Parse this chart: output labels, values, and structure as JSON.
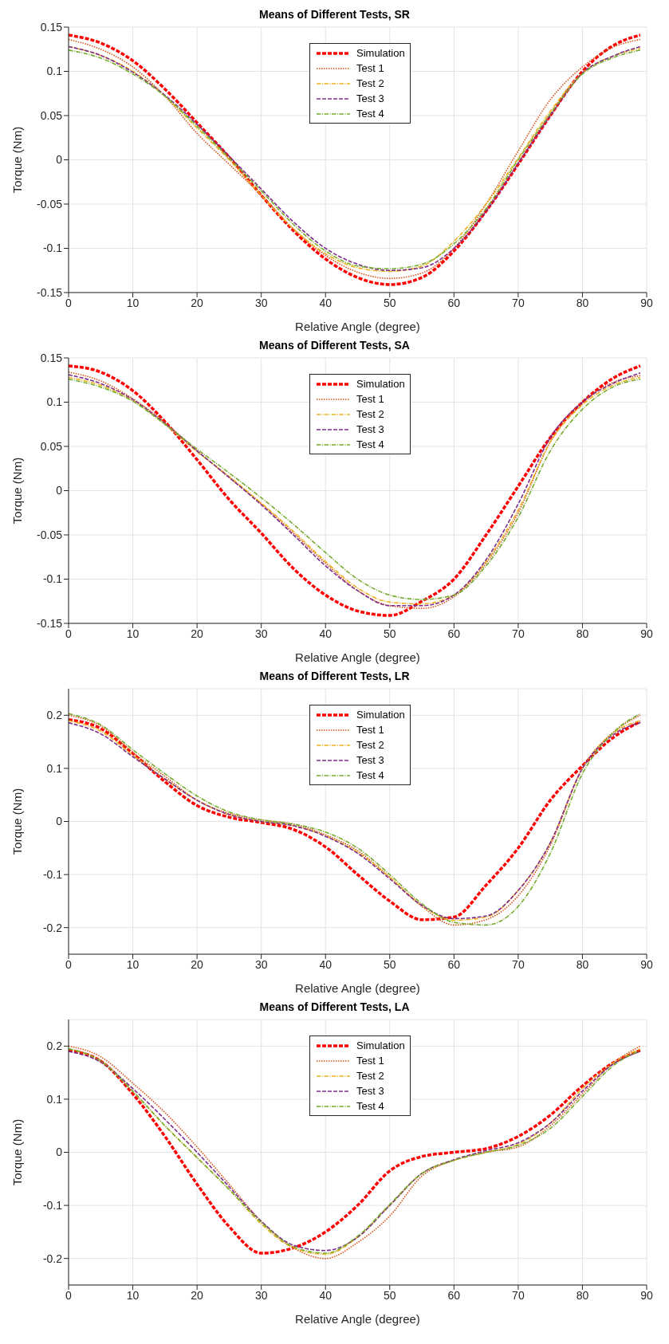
{
  "chart_data": [
    {
      "type": "line",
      "title": "Means of Different Tests, SR",
      "xlabel": "Relative Angle (degree)",
      "ylabel": "Torque (Nm)",
      "x": [
        0,
        5,
        10,
        15,
        20,
        25,
        30,
        35,
        40,
        45,
        50,
        55,
        60,
        65,
        70,
        75,
        80,
        85,
        89
      ],
      "xlim": [
        0,
        90
      ],
      "xticks": [
        0,
        10,
        20,
        30,
        40,
        50,
        60,
        70,
        80,
        90
      ],
      "ylim": [
        -0.15,
        0.15
      ],
      "yticks": [
        -0.15,
        -0.1,
        -0.05,
        0,
        0.05,
        0.1,
        0.15
      ],
      "grid": true,
      "legend": "top",
      "marker": "none",
      "series": [
        {
          "name": "Simulation",
          "color": "#ff0000",
          "line_style": "dashed",
          "values": [
            0.141,
            0.132,
            0.112,
            0.08,
            0.042,
            0.003,
            -0.04,
            -0.08,
            -0.112,
            -0.133,
            -0.141,
            -0.133,
            -0.103,
            -0.058,
            -0.005,
            0.05,
            0.1,
            0.13,
            0.141
          ]
        },
        {
          "name": "Test 1",
          "color": "#d95319",
          "line_style": "dotted",
          "values": [
            0.136,
            0.125,
            0.105,
            0.072,
            0.03,
            -0.005,
            -0.04,
            -0.078,
            -0.108,
            -0.127,
            -0.134,
            -0.128,
            -0.1,
            -0.05,
            0.01,
            0.068,
            0.105,
            0.128,
            0.136
          ]
        },
        {
          "name": "Test 2",
          "color": "#edb120",
          "line_style": "dashdot",
          "values": [
            0.128,
            0.118,
            0.1,
            0.072,
            0.036,
            0,
            -0.04,
            -0.078,
            -0.106,
            -0.122,
            -0.126,
            -0.12,
            -0.092,
            -0.05,
            0.002,
            0.055,
            0.098,
            0.118,
            0.126
          ]
        },
        {
          "name": "Test 3",
          "color": "#7e2f8e",
          "line_style": "dashed",
          "values": [
            0.128,
            0.118,
            0.099,
            0.073,
            0.04,
            0.004,
            -0.033,
            -0.07,
            -0.1,
            -0.118,
            -0.125,
            -0.122,
            -0.1,
            -0.058,
            -0.004,
            0.05,
            0.098,
            0.118,
            0.128
          ]
        },
        {
          "name": "Test 4",
          "color": "#77ac30",
          "line_style": "dashdot",
          "values": [
            0.124,
            0.115,
            0.097,
            0.072,
            0.038,
            0.002,
            -0.035,
            -0.073,
            -0.103,
            -0.12,
            -0.123,
            -0.118,
            -0.095,
            -0.055,
            0,
            0.052,
            0.097,
            0.116,
            0.124
          ]
        }
      ]
    },
    {
      "type": "line",
      "title": "Means of Different Tests, SA",
      "xlabel": "Relative Angle (degree)",
      "ylabel": "Torque (Nm)",
      "x": [
        0,
        5,
        10,
        15,
        20,
        25,
        30,
        35,
        40,
        45,
        50,
        55,
        60,
        65,
        70,
        75,
        80,
        85,
        89
      ],
      "xlim": [
        0,
        90
      ],
      "xticks": [
        0,
        10,
        20,
        30,
        40,
        50,
        60,
        70,
        80,
        90
      ],
      "ylim": [
        -0.15,
        0.15
      ],
      "yticks": [
        -0.15,
        -0.1,
        -0.05,
        0,
        0.05,
        0.1,
        0.15
      ],
      "grid": true,
      "legend": "top",
      "marker": "none",
      "series": [
        {
          "name": "Simulation",
          "color": "#ff0000",
          "line_style": "dashed",
          "values": [
            0.141,
            0.134,
            0.113,
            0.078,
            0.035,
            -0.01,
            -0.048,
            -0.088,
            -0.118,
            -0.136,
            -0.141,
            -0.125,
            -0.1,
            -0.05,
            0.005,
            0.06,
            0.1,
            0.128,
            0.141
          ]
        },
        {
          "name": "Test 1",
          "color": "#d95319",
          "line_style": "dotted",
          "values": [
            0.134,
            0.124,
            0.104,
            0.077,
            0.045,
            0.015,
            -0.015,
            -0.048,
            -0.082,
            -0.113,
            -0.13,
            -0.133,
            -0.12,
            -0.082,
            -0.025,
            0.055,
            0.1,
            0.123,
            0.13
          ]
        },
        {
          "name": "Test 2",
          "color": "#edb120",
          "line_style": "dashdot",
          "values": [
            0.128,
            0.119,
            0.102,
            0.075,
            0.044,
            0.016,
            -0.014,
            -0.046,
            -0.08,
            -0.11,
            -0.126,
            -0.128,
            -0.118,
            -0.08,
            -0.022,
            0.055,
            0.097,
            0.12,
            0.128
          ]
        },
        {
          "name": "Test 3",
          "color": "#7e2f8e",
          "line_style": "dashed",
          "values": [
            0.131,
            0.121,
            0.103,
            0.076,
            0.045,
            0.015,
            -0.016,
            -0.05,
            -0.085,
            -0.113,
            -0.13,
            -0.13,
            -0.118,
            -0.078,
            -0.015,
            0.06,
            0.1,
            0.122,
            0.133
          ]
        },
        {
          "name": "Test 4",
          "color": "#77ac30",
          "line_style": "dashdot",
          "values": [
            0.126,
            0.117,
            0.101,
            0.075,
            0.047,
            0.02,
            -0.008,
            -0.038,
            -0.07,
            -0.1,
            -0.118,
            -0.123,
            -0.118,
            -0.085,
            -0.03,
            0.045,
            0.092,
            0.118,
            0.126
          ]
        }
      ]
    },
    {
      "type": "line",
      "title": "Means of Different Tests, LR",
      "xlabel": "Relative Angle (degree)",
      "ylabel": "Torque (Nm)",
      "x": [
        0,
        5,
        10,
        15,
        20,
        25,
        30,
        35,
        40,
        45,
        50,
        55,
        60,
        65,
        70,
        75,
        80,
        85,
        89
      ],
      "xlim": [
        0,
        90
      ],
      "xticks": [
        0,
        10,
        20,
        30,
        40,
        50,
        60,
        70,
        80,
        90
      ],
      "ylim": [
        -0.25,
        0.25
      ],
      "yticks": [
        -0.2,
        -0.1,
        0,
        0.1,
        0.2
      ],
      "grid": true,
      "legend": "top",
      "marker": "none",
      "series": [
        {
          "name": "Simulation",
          "color": "#ff0000",
          "line_style": "dashed",
          "values": [
            0.192,
            0.175,
            0.128,
            0.075,
            0.03,
            0.008,
            -0.002,
            -0.015,
            -0.048,
            -0.1,
            -0.15,
            -0.185,
            -0.18,
            -0.12,
            -0.05,
            0.04,
            0.105,
            0.16,
            0.188
          ]
        },
        {
          "name": "Test 1",
          "color": "#d95319",
          "line_style": "dotted",
          "values": [
            0.2,
            0.18,
            0.13,
            0.085,
            0.04,
            0.015,
            0.003,
            -0.005,
            -0.025,
            -0.055,
            -0.105,
            -0.16,
            -0.195,
            -0.185,
            -0.14,
            -0.045,
            0.1,
            0.17,
            0.2
          ]
        },
        {
          "name": "Test 2",
          "color": "#edb120",
          "line_style": "dashdot",
          "values": [
            0.19,
            0.17,
            0.125,
            0.08,
            0.04,
            0.013,
            0,
            -0.008,
            -0.027,
            -0.058,
            -0.105,
            -0.158,
            -0.186,
            -0.18,
            -0.13,
            -0.04,
            0.1,
            0.168,
            0.19
          ]
        },
        {
          "name": "Test 3",
          "color": "#7e2f8e",
          "line_style": "dashed",
          "values": [
            0.186,
            0.165,
            0.122,
            0.08,
            0.04,
            0.013,
            0,
            -0.008,
            -0.028,
            -0.06,
            -0.108,
            -0.158,
            -0.183,
            -0.178,
            -0.13,
            -0.04,
            0.1,
            0.165,
            0.186
          ]
        },
        {
          "name": "Test 4",
          "color": "#77ac30",
          "line_style": "dashdot",
          "values": [
            0.203,
            0.182,
            0.135,
            0.09,
            0.048,
            0.018,
            0.003,
            -0.005,
            -0.02,
            -0.05,
            -0.1,
            -0.155,
            -0.19,
            -0.195,
            -0.16,
            -0.06,
            0.09,
            0.17,
            0.203
          ]
        }
      ]
    },
    {
      "type": "line",
      "title": "Means of Different Tests, LA",
      "xlabel": "Relative Angle (degree)",
      "ylabel": "Torque (Nm)",
      "x": [
        0,
        5,
        10,
        15,
        20,
        25,
        30,
        35,
        40,
        45,
        50,
        55,
        60,
        65,
        70,
        75,
        80,
        85,
        89
      ],
      "xlim": [
        0,
        90
      ],
      "xticks": [
        0,
        10,
        20,
        30,
        40,
        50,
        60,
        70,
        80,
        90
      ],
      "ylim": [
        -0.25,
        0.25
      ],
      "yticks": [
        -0.2,
        -0.1,
        0,
        0.1,
        0.2
      ],
      "grid": true,
      "legend": "top",
      "marker": "none",
      "series": [
        {
          "name": "Simulation",
          "color": "#ff0000",
          "line_style": "dashed",
          "values": [
            0.192,
            0.172,
            0.11,
            0.03,
            -0.06,
            -0.14,
            -0.19,
            -0.18,
            -0.15,
            -0.1,
            -0.035,
            -0.008,
            0,
            0.007,
            0.03,
            0.07,
            0.125,
            0.17,
            0.192
          ]
        },
        {
          "name": "Test 1",
          "color": "#d95319",
          "line_style": "dotted",
          "values": [
            0.2,
            0.18,
            0.13,
            0.075,
            0.01,
            -0.06,
            -0.13,
            -0.18,
            -0.2,
            -0.17,
            -0.12,
            -0.045,
            -0.015,
            0,
            0.01,
            0.05,
            0.11,
            0.17,
            0.2
          ]
        },
        {
          "name": "Test 2",
          "color": "#edb120",
          "line_style": "dashdot",
          "values": [
            0.195,
            0.172,
            0.115,
            0.05,
            -0.01,
            -0.07,
            -0.135,
            -0.18,
            -0.192,
            -0.16,
            -0.1,
            -0.04,
            -0.015,
            0,
            0.015,
            0.055,
            0.12,
            0.17,
            0.195
          ]
        },
        {
          "name": "Test 3",
          "color": "#7e2f8e",
          "line_style": "dashed",
          "values": [
            0.19,
            0.17,
            0.12,
            0.062,
            0,
            -0.065,
            -0.13,
            -0.175,
            -0.185,
            -0.16,
            -0.1,
            -0.04,
            -0.014,
            0.003,
            0.018,
            0.055,
            0.115,
            0.168,
            0.19
          ]
        },
        {
          "name": "Test 4",
          "color": "#77ac30",
          "line_style": "dashdot",
          "values": [
            0.195,
            0.172,
            0.115,
            0.05,
            -0.01,
            -0.07,
            -0.132,
            -0.178,
            -0.19,
            -0.158,
            -0.098,
            -0.04,
            -0.015,
            0,
            0.013,
            0.045,
            0.105,
            0.165,
            0.192
          ]
        }
      ]
    }
  ]
}
